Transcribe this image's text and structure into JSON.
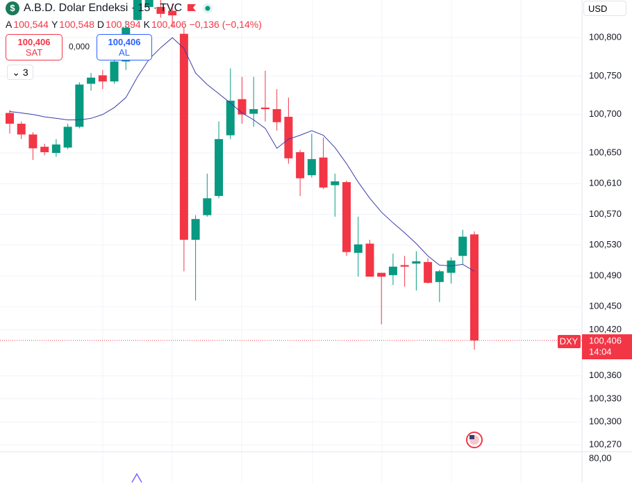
{
  "ui": {
    "symbol": "A.B.D. Dolar Endeksi · 15 · TVC",
    "ohlc": [
      {
        "k": "A",
        "v": "100,544"
      },
      {
        "k": "Y",
        "v": "100,548"
      },
      {
        "k": "D",
        "v": "100,394"
      },
      {
        "k": "K",
        "v": "100,406"
      }
    ],
    "change": "−0,136 (−0,14%)",
    "sell_price": "100,406",
    "sell": "SAT",
    "spread": "0,000",
    "buy_price": "100,406",
    "buy": "AL",
    "indicators": "3",
    "currency": "USD",
    "tag_symbol": "DXY",
    "tag_price": "100,406",
    "countdown": "14:04",
    "volume_tick": "80,00"
  },
  "chart_data": {
    "type": "candlestick",
    "up_color": "#089981",
    "down_color": "#f23645",
    "ma_color": "#3b3ba8",
    "ylim": [
      100.263,
      100.849
    ],
    "yticks": [
      {
        "value": 100.8,
        "label": "100,800"
      },
      {
        "value": 100.75,
        "label": "100,750"
      },
      {
        "value": 100.7,
        "label": "100,700"
      },
      {
        "value": 100.65,
        "label": "100,650"
      },
      {
        "value": 100.61,
        "label": "100,610"
      },
      {
        "value": 100.57,
        "label": "100,570"
      },
      {
        "value": 100.53,
        "label": "100,530"
      },
      {
        "value": 100.49,
        "label": "100,490"
      },
      {
        "value": 100.45,
        "label": "100,450"
      },
      {
        "value": 100.42,
        "label": "100,420"
      },
      {
        "value": 100.36,
        "label": "100,360"
      },
      {
        "value": 100.33,
        "label": "100,330"
      },
      {
        "value": 100.3,
        "label": "100,300"
      },
      {
        "value": 100.27,
        "label": "100,270"
      }
    ],
    "open": [
      100.702,
      100.688,
      100.674,
      100.658,
      100.65,
      100.657,
      100.684,
      100.74,
      100.751,
      100.743,
      100.769,
      100.823,
      100.84,
      100.84,
      100.835,
      100.805,
      100.537,
      100.569,
      100.594,
      100.673,
      100.72,
      100.701,
      100.709,
      100.707,
      100.697,
      100.651,
      100.621,
      100.644,
      100.608,
      100.612,
      100.52,
      100.532,
      100.494,
      100.491,
      100.504,
      100.506,
      100.508,
      100.482,
      100.494,
      100.516,
      100.544
    ],
    "high": [
      100.706,
      100.691,
      100.677,
      100.662,
      100.668,
      100.688,
      100.742,
      100.754,
      100.758,
      100.781,
      100.822,
      100.867,
      100.862,
      100.849,
      100.844,
      100.813,
      100.569,
      100.623,
      100.691,
      100.76,
      100.749,
      100.749,
      100.757,
      100.733,
      100.722,
      100.654,
      100.675,
      100.67,
      100.623,
      100.614,
      100.567,
      100.537,
      100.494,
      100.519,
      100.516,
      100.522,
      100.513,
      100.498,
      100.514,
      100.55,
      100.548
    ],
    "low": [
      100.675,
      100.668,
      100.641,
      100.647,
      100.645,
      100.655,
      100.682,
      100.731,
      100.733,
      100.74,
      100.758,
      100.822,
      100.835,
      100.826,
      100.813,
      100.496,
      100.458,
      100.567,
      100.591,
      100.668,
      100.688,
      100.684,
      100.691,
      100.679,
      100.636,
      100.594,
      100.618,
      100.603,
      100.567,
      100.516,
      100.489,
      100.489,
      100.427,
      100.478,
      100.476,
      100.471,
      100.48,
      100.456,
      100.48,
      100.505,
      100.394
    ],
    "close": [
      100.688,
      100.674,
      100.656,
      100.651,
      100.661,
      100.684,
      100.739,
      100.748,
      100.743,
      100.769,
      100.813,
      100.858,
      100.853,
      100.831,
      100.829,
      100.537,
      100.564,
      100.591,
      100.668,
      100.718,
      100.7,
      100.707,
      100.707,
      100.69,
      100.643,
      100.617,
      100.642,
      100.605,
      100.613,
      100.521,
      100.531,
      100.489,
      100.489,
      100.502,
      100.502,
      100.509,
      100.481,
      100.496,
      100.51,
      100.541,
      100.406
    ],
    "ma": [
      100.704,
      100.702,
      100.7,
      100.697,
      100.695,
      100.693,
      100.693,
      100.695,
      100.7,
      100.709,
      100.722,
      100.749,
      100.772,
      100.787,
      100.8,
      100.786,
      100.754,
      100.739,
      100.727,
      100.715,
      100.702,
      100.693,
      100.682,
      100.656,
      100.668,
      100.673,
      100.679,
      100.673,
      100.657,
      100.636,
      100.612,
      100.591,
      100.573,
      100.559,
      100.546,
      100.532,
      100.516,
      100.504,
      100.503,
      100.505,
      100.496
    ]
  }
}
